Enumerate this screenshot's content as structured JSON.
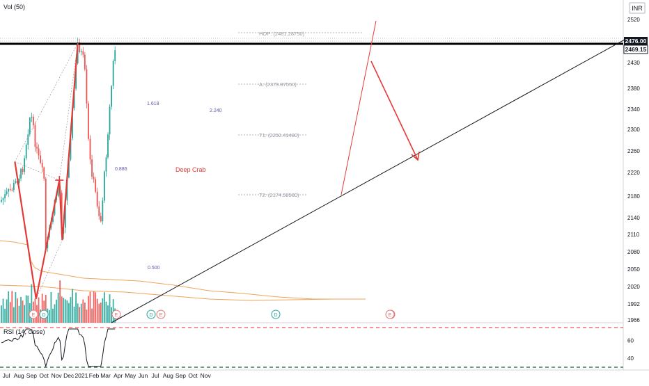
{
  "chart_data": [
    {
      "type": "candlestick",
      "currency_label": "INR",
      "volume_label": "Vol (50)",
      "price_axis_ticks": [
        2520,
        2476,
        2430,
        2380,
        2340,
        2300,
        2260,
        2220,
        2180,
        2140,
        2110,
        2080,
        2050,
        2020,
        1992,
        1966
      ],
      "price_axis_ticks_text": [
        "2520",
        "2476",
        "2430",
        "2380",
        "2340",
        "2300",
        "2260",
        "2220",
        "2180",
        "2140",
        "2110",
        "2080",
        "2050",
        "2020",
        "1992",
        "1966"
      ],
      "last_price_tags": [
        "2476.00",
        "2469.15"
      ],
      "time_axis_labels": [
        "Jul",
        "Aug",
        "Sep",
        "Oct",
        "Nov",
        "Dec",
        "2021",
        "Feb",
        "Mar",
        "Apr",
        "May",
        "Jun",
        "Jul",
        "Aug",
        "Sep",
        "Oct",
        "Nov"
      ],
      "swing_points": [
        {
          "date": "2020-08-03",
          "price": 2240
        },
        {
          "date": "2020-09-24",
          "price": 2000
        },
        {
          "date": "2020-11-20",
          "price": 2207
        },
        {
          "date": "2020-11-27",
          "price": 2100
        },
        {
          "date": "2021-01-04",
          "price": 2469
        },
        {
          "date": "2021-01-20",
          "price": 2430
        },
        {
          "date": "2021-02-01",
          "price": 2250
        },
        {
          "date": "2021-03-01",
          "price": 2130
        },
        {
          "date": "2021-04-01",
          "price": 2430
        },
        {
          "date": "2021-04-09",
          "price": 2480
        }
      ],
      "annotations": {
        "pattern_name": "Deep Crab",
        "ratio_top": "1.618",
        "ratio_mid": "0.886",
        "ratio_right": "2.240",
        "ratio_bottom": "0.500",
        "hop_label": "HOP: (2481.28750)",
        "level_a_label": "A: (2379.87550)",
        "t1_label": "T1: (2250.41480)",
        "t2_label": "T2: (2174.58580)"
      },
      "earnings_markers": [
        "E",
        "D",
        "E",
        "D",
        "E",
        "D",
        "E",
        "E"
      ]
    },
    {
      "type": "line",
      "title": "RSI (14, close)",
      "axis_ticks": [
        60,
        40
      ],
      "axis_ticks_text": [
        "60",
        "40"
      ]
    }
  ],
  "colors": {
    "up": "#26a69a",
    "down": "#ef5350",
    "pattern": "#e53935",
    "level_line": "#000000",
    "ma": "#f0a35a",
    "volume_ma": "#f0a35a",
    "marker": "#e57373"
  }
}
